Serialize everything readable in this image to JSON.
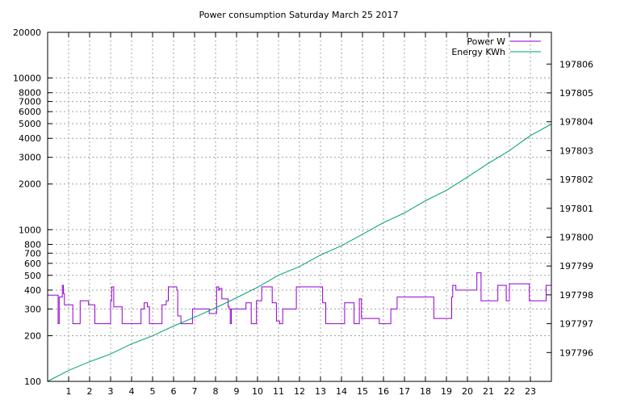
{
  "chart_data": {
    "type": "line",
    "title": "Power consumption Saturday March 25 2017",
    "xlabel": "",
    "ylabel": "",
    "y2label": "",
    "grid": true,
    "legend_position": "top-right",
    "xlim": [
      0,
      24
    ],
    "ylim": [
      100,
      20000
    ],
    "yscale": "log",
    "y2lim": [
      197795.0,
      197807.1
    ],
    "x_ticks": [
      1,
      2,
      3,
      4,
      5,
      6,
      7,
      8,
      9,
      10,
      11,
      12,
      13,
      14,
      15,
      16,
      17,
      18,
      19,
      20,
      21,
      22,
      23
    ],
    "y_ticks": [
      100,
      200,
      300,
      400,
      500,
      600,
      700,
      800,
      1000,
      2000,
      3000,
      4000,
      5000,
      6000,
      7000,
      8000,
      10000,
      20000
    ],
    "y_tick_labels": [
      "100",
      "200",
      "300",
      "400",
      "500",
      "600",
      "700",
      "800",
      "1000",
      "2000",
      "3000",
      "4000",
      "5000",
      "6000",
      "7000",
      "8000",
      "10000",
      "20000"
    ],
    "y2_ticks": [
      197796,
      197797,
      197798,
      197799,
      197800,
      197801,
      197802,
      197803,
      197804,
      197805,
      197806
    ],
    "y2_tick_labels": [
      "197796",
      "197797",
      "197798",
      "197799",
      "197800",
      "197801",
      "197802",
      "197803",
      "197804",
      "197805",
      "197806"
    ],
    "series": [
      {
        "name": "Power W",
        "axis": "y",
        "color": "#9400d3",
        "x": [
          0,
          0.5,
          0.5,
          0.55,
          0.55,
          0.7,
          0.7,
          0.75,
          0.75,
          0.8,
          0.8,
          1.2,
          1.2,
          1.55,
          1.55,
          1.95,
          1.95,
          2.25,
          2.25,
          2.35,
          2.35,
          3.0,
          3.0,
          3.05,
          3.05,
          3.15,
          3.15,
          3.55,
          3.55,
          3.75,
          3.75,
          4.45,
          4.45,
          4.6,
          4.6,
          4.75,
          4.75,
          4.85,
          4.85,
          5.45,
          5.45,
          5.65,
          5.65,
          5.75,
          5.75,
          6.15,
          6.15,
          6.2,
          6.2,
          6.35,
          6.35,
          6.5,
          6.5,
          6.9,
          6.9,
          7.7,
          7.7,
          8.05,
          8.05,
          8.15,
          8.15,
          8.2,
          8.2,
          8.3,
          8.3,
          8.6,
          8.6,
          8.65,
          8.65,
          8.7,
          8.7,
          8.75,
          8.75,
          9.45,
          9.45,
          9.7,
          9.7,
          9.8,
          9.8,
          9.95,
          9.95,
          10.2,
          10.2,
          10.7,
          10.7,
          10.9,
          10.9,
          11.05,
          11.05,
          11.2,
          11.2,
          11.85,
          11.85,
          13.1,
          13.1,
          13.25,
          13.25,
          13.45,
          13.45,
          14.15,
          14.15,
          14.6,
          14.6,
          14.85,
          14.85,
          14.95,
          14.95,
          15.8,
          15.8,
          16.35,
          16.35,
          16.65,
          16.65,
          17.5,
          17.5,
          18.4,
          18.4,
          19.25,
          19.25,
          19.3,
          19.3,
          19.45,
          19.45,
          19.9,
          19.9,
          20.45,
          20.45,
          20.65,
          20.65,
          21.45,
          21.45,
          21.85,
          21.85,
          22.0,
          22.0,
          22.95,
          22.95,
          23.75,
          23.75,
          24
        ],
        "values": [
          370,
          370,
          240,
          240,
          360,
          360,
          430,
          430,
          380,
          380,
          320,
          320,
          240,
          240,
          340,
          340,
          320,
          320,
          240,
          240,
          240,
          240,
          340,
          340,
          420,
          420,
          310,
          310,
          240,
          240,
          240,
          240,
          300,
          300,
          330,
          330,
          310,
          310,
          240,
          240,
          320,
          320,
          340,
          340,
          420,
          420,
          400,
          400,
          270,
          270,
          240,
          240,
          240,
          240,
          300,
          300,
          280,
          280,
          420,
          420,
          400,
          400,
          410,
          410,
          350,
          350,
          310,
          310,
          300,
          300,
          240,
          240,
          300,
          300,
          330,
          330,
          240,
          240,
          240,
          240,
          340,
          340,
          420,
          420,
          330,
          330,
          250,
          250,
          240,
          240,
          300,
          300,
          420,
          420,
          330,
          330,
          240,
          240,
          240,
          240,
          330,
          330,
          240,
          240,
          350,
          350,
          260,
          260,
          240,
          240,
          300,
          300,
          360,
          360,
          360,
          360,
          260,
          260,
          360,
          360,
          430,
          430,
          400,
          400,
          400,
          400,
          520,
          520,
          340,
          340,
          430,
          430,
          340,
          340,
          440,
          440,
          340,
          340,
          430,
          430
        ]
      },
      {
        "name": "Energy KWh",
        "axis": "y2",
        "color": "#009e73",
        "x": [
          0,
          1,
          2,
          3,
          4,
          5,
          6,
          7,
          8,
          9,
          10,
          11,
          12,
          13,
          14,
          15,
          16,
          17,
          18,
          19,
          20,
          21,
          22,
          23,
          24
        ],
        "values": [
          197795.0,
          197795.38,
          197795.68,
          197795.95,
          197796.3,
          197796.58,
          197796.92,
          197797.22,
          197797.55,
          197797.9,
          197798.26,
          197798.68,
          197798.98,
          197799.38,
          197799.7,
          197800.1,
          197800.5,
          197800.84,
          197801.26,
          197801.62,
          197802.08,
          197802.56,
          197803.0,
          197803.52,
          197803.92
        ]
      }
    ]
  }
}
